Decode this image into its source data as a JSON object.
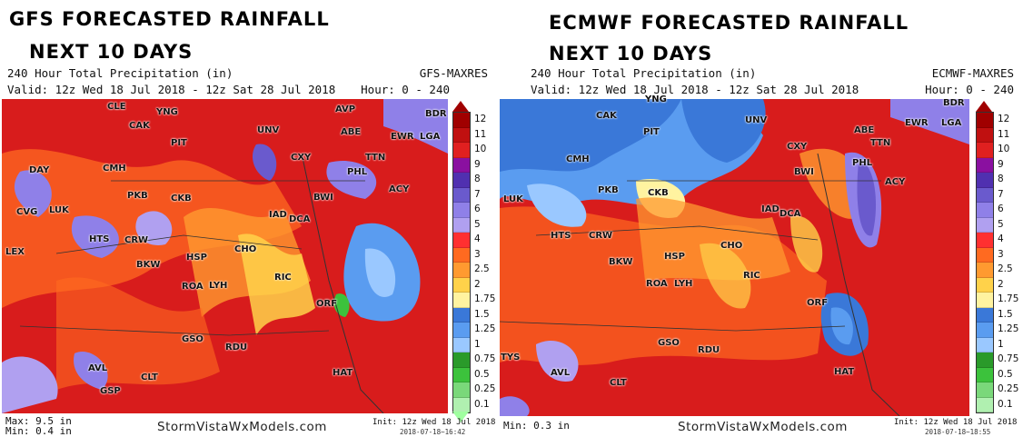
{
  "panels": [
    {
      "heading_line1": "GFS  FORECASTED  RAINFALL",
      "heading_line2": "NEXT  10 DAYS",
      "product": "240 Hour Total Precipitation (in)",
      "model": "GFS-MAXRES",
      "valid": "Valid: 12z Wed 18 Jul 2018 - 12z Sat 28 Jul 2018",
      "hours": "Hour: 0 - 240",
      "max": "Max: 9.5 in",
      "min": "Min: 0.4 in",
      "brand": "StormVistaWxModels.com",
      "init": "Init: 12z Wed 18 Jul 2018",
      "stamp": "2018-07-18~16:42",
      "cities": [
        "CLE",
        "YNG",
        "AVP",
        "BDR",
        "CAK",
        "PIT",
        "UNV",
        "ABE",
        "EWR",
        "LGA",
        "CXY",
        "TTN",
        "DAY",
        "CMH",
        "PHL",
        "ACY",
        "PKB",
        "CKB",
        "BWI",
        "CVG",
        "LUK",
        "IAD",
        "DCA",
        "HTS",
        "CRW",
        "CHO",
        "LEX",
        "HSP",
        "BKW",
        "RIC",
        "ROA",
        "LYH",
        "ORF",
        "GSO",
        "RDU",
        "AVL",
        "CLT",
        "HAT",
        "GSP"
      ]
    },
    {
      "heading_line1": "ECMWF FORECASTED  RAINFALL",
      "heading_line2": "NEXT  10 DAYS",
      "product": "240 Hour Total Precipitation (in)",
      "model": "ECMWF-MAXRES",
      "valid": "Valid: 12z Wed 18 Jul 2018 - 12z Sat 28 Jul 2018",
      "hours": "Hour: 0 - 240",
      "max": "",
      "min": "Min: 0.3 in",
      "brand": "StormVistaWxModels.com",
      "init": "Init: 12z Wed 18 Jul 2018",
      "stamp": "2018-07-18~18:55",
      "cities": [
        "YNG",
        "BDR",
        "CAK",
        "PIT",
        "UNV",
        "ABE",
        "EWR",
        "LGA",
        "CXY",
        "TTN",
        "CMH",
        "PHL",
        "ACY",
        "PKB",
        "CKB",
        "BWI",
        "LUK",
        "IAD",
        "DCA",
        "HTS",
        "CRW",
        "CHO",
        "HSP",
        "BKW",
        "RIC",
        "ROA",
        "LYH",
        "ORF",
        "TYS",
        "GSO",
        "RDU",
        "AVL",
        "CLT",
        "HAT"
      ]
    }
  ],
  "colorbar": {
    "labels": [
      "12",
      "11",
      "10",
      "9",
      "8",
      "7",
      "6",
      "5",
      "4",
      "3",
      "2.5",
      "2",
      "1.75",
      "1.5",
      "1.25",
      "1",
      "0.75",
      "0.5",
      "0.25",
      "0.1"
    ],
    "colors": [
      "#a00000",
      "#c01010",
      "#e02020",
      "#8a10a0",
      "#5030b0",
      "#6a5acd",
      "#8f80e8",
      "#b0a0f0",
      "#ff3030",
      "#ff6a20",
      "#ff9a30",
      "#ffd24a",
      "#fff3a0",
      "#3a78d8",
      "#5a9cf0",
      "#9ac8ff",
      "#2a9a2a",
      "#3cc23c",
      "#7ad87a",
      "#b0f0b0"
    ]
  }
}
